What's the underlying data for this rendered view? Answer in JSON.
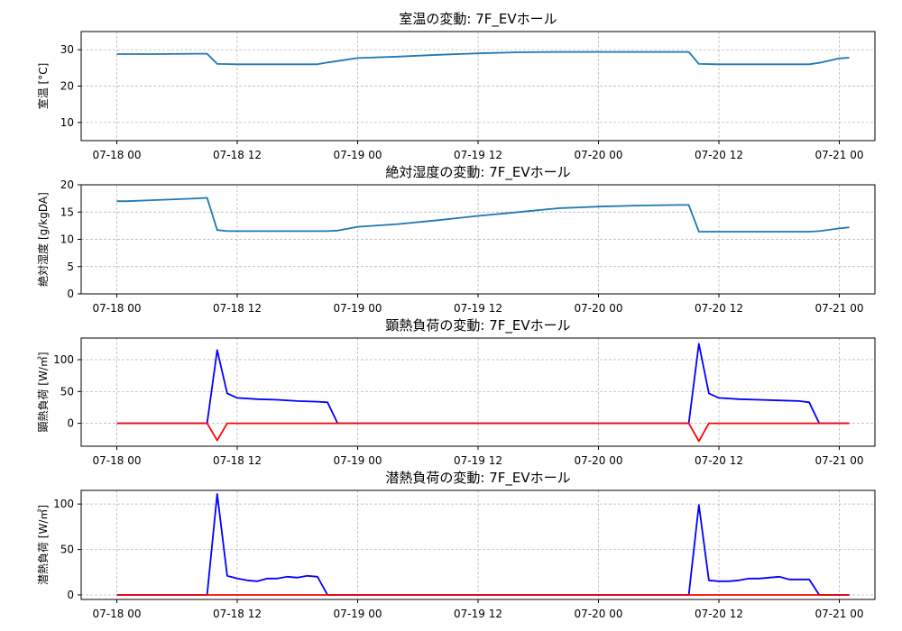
{
  "chart_data": [
    {
      "type": "line",
      "title": "室温の変動: 7F_EVホール",
      "xlabel": "",
      "ylabel": "室温 [°C]",
      "x": [
        "07-18 00",
        "07-18 04",
        "07-18 08",
        "07-18 09",
        "07-18 10",
        "07-18 12",
        "07-18 14",
        "07-18 16",
        "07-18 18",
        "07-18 20",
        "07-18 21",
        "07-18 22",
        "07-19 00",
        "07-19 04",
        "07-19 08",
        "07-19 12",
        "07-19 16",
        "07-19 20",
        "07-20 00",
        "07-20 04",
        "07-20 08",
        "07-20 09",
        "07-20 10",
        "07-20 12",
        "07-20 16",
        "07-20 20",
        "07-20 21",
        "07-20 22",
        "07-21 00",
        "07-21 01"
      ],
      "xticks": [
        "07-18 00",
        "07-18 12",
        "07-19 00",
        "07-19 12",
        "07-20 00",
        "07-20 12",
        "07-21 00"
      ],
      "xrange": [
        "07-18 00",
        "07-21 00"
      ],
      "ylim": [
        5,
        35
      ],
      "yticks": [
        10,
        20,
        30
      ],
      "grid": true,
      "series": [
        {
          "color": "#1f77b4",
          "values": [
            28.8,
            28.8,
            28.9,
            28.9,
            26.1,
            26.0,
            26.0,
            26.0,
            26.0,
            26.0,
            26.5,
            26.9,
            27.7,
            28.1,
            28.6,
            29.0,
            29.3,
            29.4,
            29.4,
            29.4,
            29.4,
            29.4,
            26.1,
            26.0,
            26.0,
            26.0,
            26.0,
            26.4,
            27.6,
            27.8
          ]
        }
      ]
    },
    {
      "type": "line",
      "title": "絶対湿度の変動: 7F_EVホール",
      "xlabel": "",
      "ylabel": "絶対湿度 [g/kgDA]",
      "x": [
        "07-18 00",
        "07-18 01",
        "07-18 04",
        "07-18 08",
        "07-18 09",
        "07-18 10",
        "07-18 11",
        "07-18 12",
        "07-18 16",
        "07-18 20",
        "07-18 21",
        "07-18 22",
        "07-19 00",
        "07-19 04",
        "07-19 08",
        "07-19 12",
        "07-19 16",
        "07-19 20",
        "07-20 00",
        "07-20 04",
        "07-20 08",
        "07-20 09",
        "07-20 10",
        "07-20 12",
        "07-20 16",
        "07-20 20",
        "07-20 21",
        "07-20 22",
        "07-21 00",
        "07-21 01"
      ],
      "xticks": [
        "07-18 00",
        "07-18 12",
        "07-19 00",
        "07-19 12",
        "07-20 00",
        "07-20 12",
        "07-21 00"
      ],
      "xrange": [
        "07-18 00",
        "07-21 00"
      ],
      "ylim": [
        0,
        20
      ],
      "yticks": [
        0,
        5,
        10,
        15,
        20
      ],
      "grid": true,
      "series": [
        {
          "color": "#1f77b4",
          "values": [
            17.0,
            17.0,
            17.2,
            17.5,
            17.6,
            11.7,
            11.5,
            11.5,
            11.5,
            11.5,
            11.5,
            11.6,
            12.3,
            12.8,
            13.5,
            14.3,
            15.0,
            15.7,
            16.0,
            16.2,
            16.3,
            16.3,
            11.4,
            11.4,
            11.4,
            11.4,
            11.4,
            11.5,
            12.0,
            12.2
          ]
        }
      ]
    },
    {
      "type": "line",
      "title": "顕熱負荷の変動: 7F_EVホール",
      "xlabel": "",
      "ylabel": "顕熱負荷 [W/㎡]",
      "x": [
        "07-18 00",
        "07-18 08",
        "07-18 09",
        "07-18 10",
        "07-18 11",
        "07-18 12",
        "07-18 14",
        "07-18 16",
        "07-18 18",
        "07-18 20",
        "07-18 21",
        "07-18 22",
        "07-19 00",
        "07-20 00",
        "07-20 08",
        "07-20 09",
        "07-20 10",
        "07-20 11",
        "07-20 12",
        "07-20 14",
        "07-20 16",
        "07-20 18",
        "07-20 20",
        "07-20 21",
        "07-20 22",
        "07-21 00",
        "07-21 01"
      ],
      "xticks": [
        "07-18 00",
        "07-18 12",
        "07-19 00",
        "07-19 12",
        "07-20 00",
        "07-20 12",
        "07-21 00"
      ],
      "xrange": [
        "07-18 00",
        "07-21 00"
      ],
      "ylim": [
        -36,
        134
      ],
      "yticks": [
        0,
        50,
        100
      ],
      "grid": true,
      "series": [
        {
          "color": "#0000ff",
          "values": [
            0,
            0,
            0,
            115,
            47,
            40,
            38,
            37,
            35,
            34,
            33,
            0,
            0,
            0,
            0,
            0,
            125,
            47,
            40,
            38,
            37,
            36,
            35,
            33,
            0,
            0,
            0
          ]
        },
        {
          "color": "#ff0000",
          "values": [
            0,
            0,
            0,
            -27,
            0,
            0,
            0,
            0,
            0,
            0,
            0,
            0,
            0,
            0,
            0,
            0,
            -28,
            0,
            0,
            0,
            0,
            0,
            0,
            0,
            0,
            0,
            0
          ]
        }
      ]
    },
    {
      "type": "line",
      "title": "潜熱負荷の変動: 7F_EVホール",
      "xlabel": "",
      "ylabel": "潜熱負荷 [W/㎡]",
      "x": [
        "07-18 00",
        "07-18 08",
        "07-18 09",
        "07-18 10",
        "07-18 11",
        "07-18 12",
        "07-18 13",
        "07-18 14",
        "07-18 15",
        "07-18 16",
        "07-18 17",
        "07-18 18",
        "07-18 19",
        "07-18 20",
        "07-18 21",
        "07-18 22",
        "07-19 00",
        "07-20 00",
        "07-20 08",
        "07-20 09",
        "07-20 10",
        "07-20 11",
        "07-20 12",
        "07-20 13",
        "07-20 14",
        "07-20 15",
        "07-20 16",
        "07-20 17",
        "07-20 18",
        "07-20 19",
        "07-20 20",
        "07-20 21",
        "07-20 22",
        "07-21 00",
        "07-21 01"
      ],
      "xticks": [
        "07-18 00",
        "07-18 12",
        "07-19 00",
        "07-19 12",
        "07-20 00",
        "07-20 12",
        "07-21 00"
      ],
      "xrange": [
        "07-18 00",
        "07-21 00"
      ],
      "ylim": [
        -5,
        115
      ],
      "yticks": [
        0,
        50,
        100
      ],
      "grid": true,
      "series": [
        {
          "color": "#0000ff",
          "values": [
            0,
            0,
            0,
            111,
            21,
            18,
            16,
            15,
            18,
            18,
            20,
            19,
            21,
            20,
            0,
            0,
            0,
            0,
            0,
            0,
            99,
            16,
            15,
            15,
            16,
            18,
            18,
            19,
            20,
            17,
            17,
            17,
            0,
            0,
            0
          ]
        },
        {
          "color": "#ff0000",
          "values": [
            0,
            0,
            0,
            0,
            0,
            0,
            0,
            0,
            0,
            0,
            0,
            0,
            0,
            0,
            0,
            0,
            0,
            0,
            0,
            0,
            0,
            0,
            0,
            0,
            0,
            0,
            0,
            0,
            0,
            0,
            0,
            0,
            0,
            0,
            0
          ]
        }
      ]
    }
  ]
}
